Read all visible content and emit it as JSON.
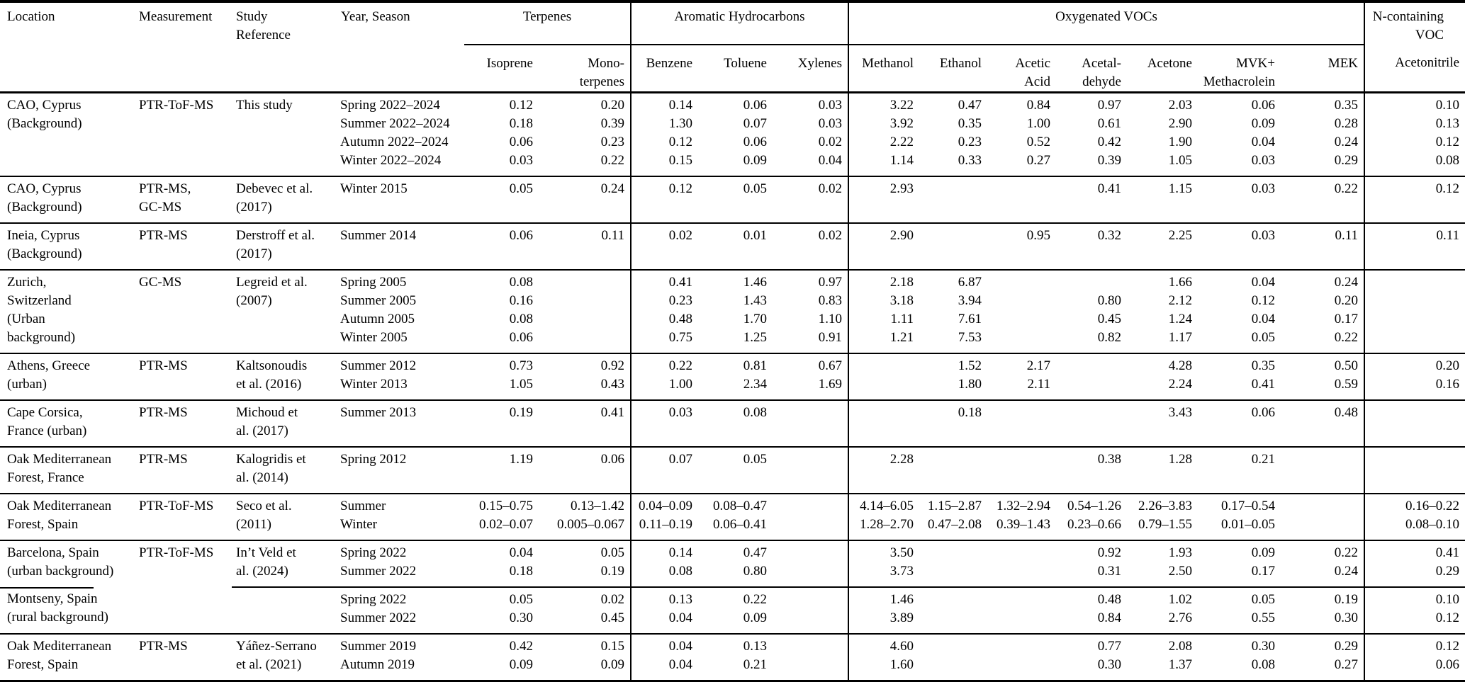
{
  "table": {
    "corner_headers": {
      "location": "Location",
      "measurement": "Measurement",
      "reference": "Study\nReference",
      "year_season": "Year, Season"
    },
    "group_headers": [
      {
        "label": "Terpenes",
        "colspan": 2
      },
      {
        "label": "Aromatic Hydrocarbons",
        "colspan": 3
      },
      {
        "label": "Oxygenated VOCs",
        "colspan": 7
      },
      {
        "label": "N-containing\nVOC",
        "colspan": 1
      }
    ],
    "species_headers": [
      "Isoprene",
      "Mono-\nterpenes",
      "Benzene",
      "Toluene",
      "Xylenes",
      "Methanol",
      "Ethanol",
      "Acetic\nAcid",
      "Acetal-\ndehyde",
      "Acetone",
      "MVK+\nMethacrolein",
      "MEK",
      "Acetonitrile"
    ],
    "groups": [
      {
        "location": "CAO, Cyprus\n(Background)",
        "measurement": "PTR-ToF-MS",
        "reference": "This study",
        "rows": [
          {
            "season": "Spring 2022–2024",
            "values": [
              "0.12",
              "0.20",
              "0.14",
              "0.06",
              "0.03",
              "3.22",
              "0.47",
              "0.84",
              "0.97",
              "2.03",
              "0.06",
              "0.35",
              "0.10"
            ]
          },
          {
            "season": "Summer 2022–2024",
            "values": [
              "0.18",
              "0.39",
              "1.30",
              "0.07",
              "0.03",
              "3.92",
              "0.35",
              "1.00",
              "0.61",
              "2.90",
              "0.09",
              "0.28",
              "0.13"
            ]
          },
          {
            "season": "Autumn 2022–2024",
            "values": [
              "0.06",
              "0.23",
              "0.12",
              "0.06",
              "0.02",
              "2.22",
              "0.23",
              "0.52",
              "0.42",
              "1.90",
              "0.04",
              "0.24",
              "0.12"
            ]
          },
          {
            "season": "Winter 2022–2024",
            "values": [
              "0.03",
              "0.22",
              "0.15",
              "0.09",
              "0.04",
              "1.14",
              "0.33",
              "0.27",
              "0.39",
              "1.05",
              "0.03",
              "0.29",
              "0.08"
            ]
          }
        ]
      },
      {
        "location": "CAO, Cyprus\n(Background)",
        "measurement": "PTR-MS,\nGC-MS",
        "reference": "Debevec et al.\n(2017)",
        "rows": [
          {
            "season": "Winter 2015",
            "values": [
              "0.05",
              "0.24",
              "0.12",
              "0.05",
              "0.02",
              "2.93",
              "",
              "",
              "0.41",
              "1.15",
              "0.03",
              "0.22",
              "0.12"
            ]
          }
        ]
      },
      {
        "location": "Ineia, Cyprus\n(Background)",
        "measurement": "PTR-MS",
        "reference": "Derstroff et al.\n(2017)",
        "rows": [
          {
            "season": "Summer 2014",
            "values": [
              "0.06",
              "0.11",
              "0.02",
              "0.01",
              "0.02",
              "2.90",
              "",
              "0.95",
              "0.32",
              "2.25",
              "0.03",
              "0.11",
              "0.11"
            ]
          }
        ]
      },
      {
        "location": "Zurich,\nSwitzerland\n(Urban\nbackground)",
        "measurement": "GC-MS",
        "reference": "Legreid et al.\n(2007)",
        "rows": [
          {
            "season": "Spring 2005",
            "values": [
              "0.08",
              "",
              "0.41",
              "1.46",
              "0.97",
              "2.18",
              "6.87",
              "",
              "",
              "1.66",
              "0.04",
              "0.24",
              ""
            ]
          },
          {
            "season": "Summer 2005",
            "values": [
              "0.16",
              "",
              "0.23",
              "1.43",
              "0.83",
              "3.18",
              "3.94",
              "",
              "0.80",
              "2.12",
              "0.12",
              "0.20",
              ""
            ]
          },
          {
            "season": "Autumn 2005",
            "values": [
              "0.08",
              "",
              "0.48",
              "1.70",
              "1.10",
              "1.11",
              "7.61",
              "",
              "0.45",
              "1.24",
              "0.04",
              "0.17",
              ""
            ]
          },
          {
            "season": "Winter 2005",
            "values": [
              "0.06",
              "",
              "0.75",
              "1.25",
              "0.91",
              "1.21",
              "7.53",
              "",
              "0.82",
              "1.17",
              "0.05",
              "0.22",
              ""
            ]
          }
        ]
      },
      {
        "location": "Athens, Greece\n(urban)",
        "measurement": "PTR-MS",
        "reference": "Kaltsonoudis\net al. (2016)",
        "rows": [
          {
            "season": "Summer 2012",
            "values": [
              "0.73",
              "0.92",
              "0.22",
              "0.81",
              "0.67",
              "",
              "1.52",
              "2.17",
              "",
              "4.28",
              "0.35",
              "0.50",
              "0.20"
            ]
          },
          {
            "season": "Winter 2013",
            "values": [
              "1.05",
              "0.43",
              "1.00",
              "2.34",
              "1.69",
              "",
              "1.80",
              "2.11",
              "",
              "2.24",
              "0.41",
              "0.59",
              "0.16"
            ]
          }
        ]
      },
      {
        "location": "Cape Corsica,\nFrance (urban)",
        "measurement": "PTR-MS",
        "reference": "Michoud et\nal. (2017)",
        "rows": [
          {
            "season": "Summer 2013",
            "values": [
              "0.19",
              "0.41",
              "0.03",
              "0.08",
              "",
              "",
              "0.18",
              "",
              "",
              "3.43",
              "0.06",
              "0.48",
              ""
            ]
          }
        ]
      },
      {
        "location": "Oak Mediterranean\nForest, France",
        "measurement": "PTR-MS",
        "reference": "Kalogridis et\nal. (2014)",
        "rows": [
          {
            "season": "Spring 2012",
            "values": [
              "1.19",
              "0.06",
              "0.07",
              "0.05",
              "",
              "2.28",
              "",
              "",
              "0.38",
              "1.28",
              "0.21",
              "",
              ""
            ]
          }
        ]
      },
      {
        "location": "Oak Mediterranean\nForest, Spain",
        "measurement": "PTR-ToF-MS",
        "reference": "Seco et al.\n(2011)",
        "rows": [
          {
            "season": "Summer",
            "values": [
              "0.15–0.75",
              "0.13–1.42",
              "0.04–0.09",
              "0.08–0.47",
              "",
              "4.14–6.05",
              "1.15–2.87",
              "1.32–2.94",
              "0.54–1.26",
              "2.26–3.83",
              "0.17–0.54",
              "",
              "0.16–0.22"
            ]
          },
          {
            "season": "Winter",
            "values": [
              "0.02–0.07",
              "0.005–0.067",
              "0.11–0.19",
              "0.06–0.41",
              "",
              "1.28–2.70",
              "0.47–2.08",
              "0.39–1.43",
              "0.23–0.66",
              "0.79–1.55",
              "0.01–0.05",
              "",
              "0.08–0.10"
            ]
          }
        ]
      },
      {
        "location": "Barcelona, Spain\n(urban background)",
        "measurement": "PTR-ToF-MS",
        "reference": "In’t Veld et\nal. (2024)",
        "rows": [
          {
            "season": "Spring 2022",
            "values": [
              "0.04",
              "0.05",
              "0.14",
              "0.47",
              "",
              "3.50",
              "",
              "",
              "0.92",
              "1.93",
              "0.09",
              "0.22",
              "0.41"
            ]
          },
          {
            "season": "Summer 2022",
            "values": [
              "0.18",
              "0.19",
              "0.08",
              "0.80",
              "",
              "3.73",
              "",
              "",
              "0.31",
              "2.50",
              "0.17",
              "0.24",
              "0.29"
            ]
          }
        ]
      },
      {
        "location": "Montseny, Spain\n(rural background)",
        "measurement": "",
        "reference": "",
        "partial_rule": true,
        "rows": [
          {
            "season": "Spring 2022",
            "values": [
              "0.05",
              "0.02",
              "0.13",
              "0.22",
              "",
              "1.46",
              "",
              "",
              "0.48",
              "1.02",
              "0.05",
              "0.19",
              "0.10"
            ]
          },
          {
            "season": "Summer 2022",
            "values": [
              "0.30",
              "0.45",
              "0.04",
              "0.09",
              "",
              "3.89",
              "",
              "",
              "0.84",
              "2.76",
              "0.55",
              "0.30",
              "0.12"
            ]
          }
        ]
      },
      {
        "location": "Oak Mediterranean\nForest, Spain",
        "measurement": "PTR-MS",
        "reference": "Yáñez-Serrano\net al. (2021)",
        "rows": [
          {
            "season": "Summer 2019",
            "values": [
              "0.42",
              "0.15",
              "0.04",
              "0.13",
              "",
              "4.60",
              "",
              "",
              "0.77",
              "2.08",
              "0.30",
              "0.29",
              "0.12"
            ]
          },
          {
            "season": "Autumn 2019",
            "values": [
              "0.09",
              "0.09",
              "0.04",
              "0.21",
              "",
              "1.60",
              "",
              "",
              "0.30",
              "1.37",
              "0.08",
              "0.27",
              "0.06"
            ]
          }
        ]
      }
    ]
  }
}
